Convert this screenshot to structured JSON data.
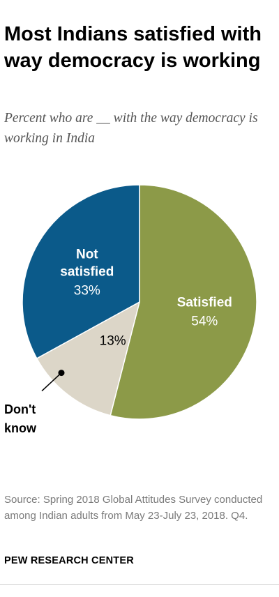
{
  "header": {
    "title": "Most Indians satisfied with way democracy is working",
    "subtitle": "Percent who are __ with the way democracy is working in India"
  },
  "chart_data": {
    "type": "pie",
    "title": "Most Indians satisfied with way democracy is working",
    "subtitle": "Percent who are __ with the way democracy is working in India",
    "slices": [
      {
        "label": "Satisfied",
        "value": 54,
        "value_label": "54%",
        "color": "#8c9a48",
        "text_color": "#ffffff"
      },
      {
        "label": "Don't know",
        "value": 13,
        "value_label": "13%",
        "color": "#dcd6c8",
        "text_color": "#000000"
      },
      {
        "label": "Not satisfied",
        "value": 33,
        "value_label": "33%",
        "color": "#0b5a8a",
        "text_color": "#ffffff"
      }
    ]
  },
  "footer": {
    "source": "Source: Spring 2018 Global Attitudes Survey conducted among Indian adults from May 23-July 23, 2018. Q4.",
    "org": "PEW RESEARCH CENTER"
  }
}
